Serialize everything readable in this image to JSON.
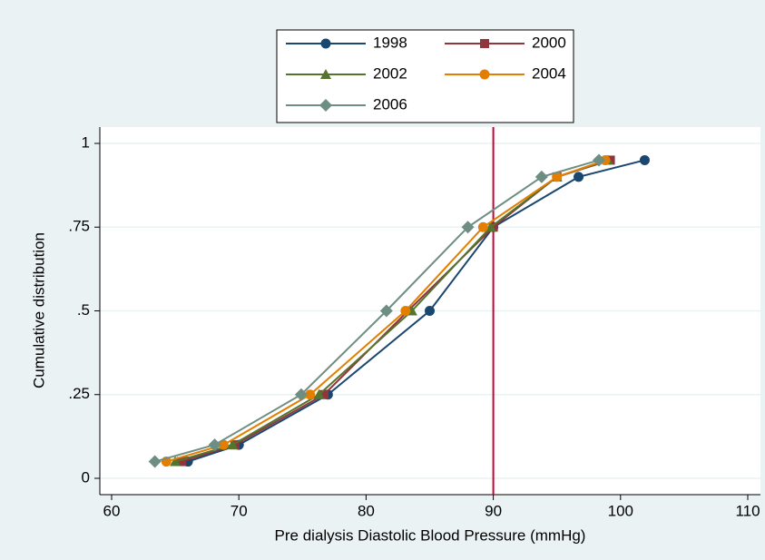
{
  "chart_data": {
    "type": "line",
    "x_label": "Pre dialysis Diastolic Blood Pressure (mmHg)",
    "y_label": "Cumulative distribution",
    "xlim": [
      60,
      110
    ],
    "xticks": [
      60,
      70,
      80,
      90,
      100,
      110
    ],
    "ylim": [
      0,
      1
    ],
    "yticks": [
      0,
      {
        "value": 0.25,
        "label": ".25"
      },
      {
        "value": 0.5,
        "label": ".5"
      },
      {
        "value": 0.75,
        "label": ".75"
      },
      1
    ],
    "grid": true,
    "reference_x": 90,
    "reference_color": "#c10534",
    "legend": "top",
    "series": [
      {
        "name": "1998",
        "color": "#1a476f",
        "marker": "circle",
        "x": [
          66,
          70,
          77,
          85,
          90,
          96.7,
          101.9
        ],
        "values": [
          0.05,
          0.1,
          0.25,
          0.5,
          0.75,
          0.9,
          0.95
        ]
      },
      {
        "name": "2000",
        "color": "#90353b",
        "marker": "square",
        "x": [
          65.5,
          69.7,
          76.7,
          83.3,
          90,
          95,
          99.2
        ],
        "values": [
          0.05,
          0.1,
          0.25,
          0.5,
          0.75,
          0.9,
          0.95
        ]
      },
      {
        "name": "2002",
        "color": "#55752f",
        "marker": "triangle",
        "x": [
          65,
          69.5,
          76.3,
          83.6,
          89.8,
          95,
          99
        ],
        "values": [
          0.05,
          0.1,
          0.25,
          0.5,
          0.75,
          0.9,
          0.95
        ]
      },
      {
        "name": "2004",
        "color": "#e37e00",
        "marker": "circle",
        "x": [
          64.3,
          68.8,
          75.6,
          83.1,
          89.2,
          95,
          98.8
        ],
        "values": [
          0.05,
          0.1,
          0.25,
          0.5,
          0.75,
          0.9,
          0.95
        ]
      },
      {
        "name": "2006",
        "color": "#6e8e84",
        "marker": "diamond",
        "x": [
          63.4,
          68.1,
          74.9,
          81.6,
          88,
          93.8,
          98.3
        ],
        "values": [
          0.05,
          0.1,
          0.25,
          0.5,
          0.75,
          0.9,
          0.95
        ]
      }
    ]
  }
}
